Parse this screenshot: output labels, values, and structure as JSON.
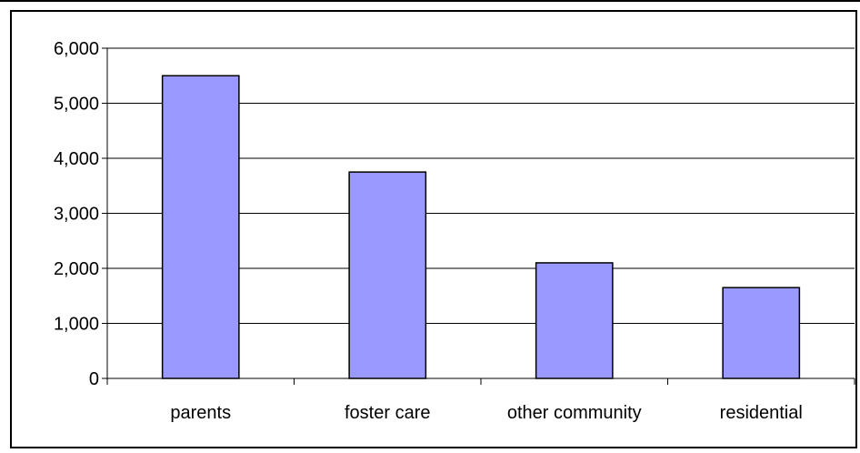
{
  "chart_data": {
    "type": "bar",
    "title": "",
    "xlabel": "",
    "ylabel": "",
    "categories": [
      "parents",
      "foster care",
      "other community",
      "residential"
    ],
    "values": [
      5500,
      3750,
      2100,
      1650
    ],
    "ylim": [
      0,
      6000
    ],
    "yticks": [
      0,
      1000,
      2000,
      3000,
      4000,
      5000,
      6000
    ],
    "ytick_labels": [
      "0",
      "1,000",
      "2,000",
      "3,000",
      "4,000",
      "5,000",
      "6,000"
    ],
    "grid": "horizontal",
    "legend": "none",
    "bar_color": "#9999ff",
    "bar_edge_color": "#000000"
  }
}
